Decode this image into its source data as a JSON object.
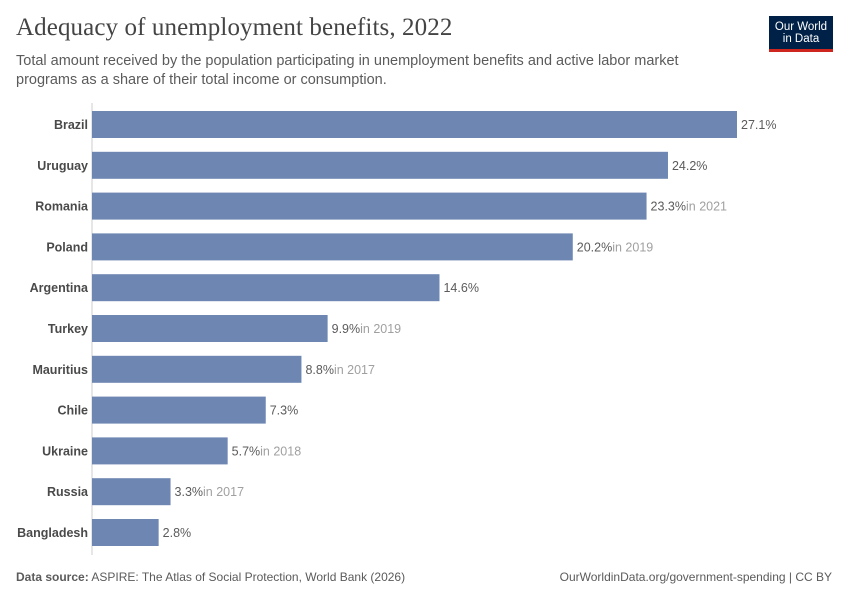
{
  "header": {
    "title": "Adequacy of unemployment benefits, 2022",
    "subtitle": "Total amount received by the population participating in unemployment benefits and active labor market programs as a share of their total income or consumption."
  },
  "logo": {
    "line1": "Our World",
    "line2": "in Data",
    "bg_color": "#002147",
    "accent_color": "#ce261e"
  },
  "footer": {
    "source_prefix": "Data source:",
    "source_text": " ASPIRE: The Atlas of Social Protection, World Bank (2026)",
    "url_license": "OurWorldinData.org/government-spending | CC BY"
  },
  "chart_data": {
    "type": "bar",
    "orientation": "horizontal",
    "bar_color": "#6d87b2",
    "categories": [
      "Brazil",
      "Uruguay",
      "Romania",
      "Poland",
      "Argentina",
      "Turkey",
      "Mauritius",
      "Chile",
      "Ukraine",
      "Russia",
      "Bangladesh"
    ],
    "values": [
      27.1,
      24.2,
      23.3,
      20.2,
      14.6,
      9.9,
      8.8,
      7.3,
      5.7,
      3.3,
      2.8
    ],
    "value_labels": [
      "27.1%",
      "24.2%",
      "23.3%",
      "20.2%",
      "14.6%",
      "9.9%",
      "8.8%",
      "7.3%",
      "5.7%",
      "3.3%",
      "2.8%"
    ],
    "notes": [
      "",
      "",
      "in 2021",
      "in 2019",
      "",
      "in 2019",
      "in 2017",
      "",
      "in 2018",
      "in 2017",
      ""
    ],
    "xlim": [
      0,
      27.1
    ],
    "grid": false
  }
}
